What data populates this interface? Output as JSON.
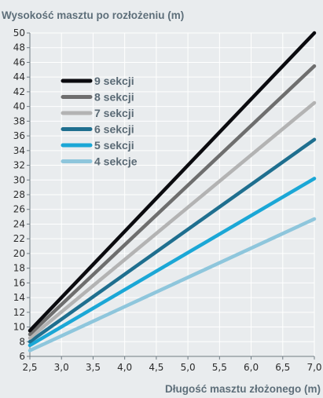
{
  "chart_data": {
    "type": "line",
    "title": "Wysokość masztu po rozłożeniu (m)",
    "xlabel": "Długość masztu złożonego (m)",
    "ylabel": "",
    "xlim": [
      2.5,
      7.0
    ],
    "ylim": [
      6,
      50
    ],
    "x_ticks": [
      "2,5",
      "3,0",
      "3,5",
      "4,0",
      "4,5",
      "5,0",
      "5,5",
      "6,0",
      "6,5",
      "7,0"
    ],
    "y_ticks": [
      "6",
      "8",
      "10",
      "12",
      "14",
      "16",
      "18",
      "20",
      "22",
      "24",
      "26",
      "28",
      "30",
      "32",
      "34",
      "36",
      "38",
      "40",
      "42",
      "44",
      "46",
      "48",
      "50"
    ],
    "grid": true,
    "legend_position": "top-left",
    "series": [
      {
        "name": "9 sekcji",
        "color": "#0b0b0f",
        "x": [
          2.5,
          7.0
        ],
        "y": [
          9.5,
          50.0
        ]
      },
      {
        "name": "8 sekcji",
        "color": "#6e6e6e",
        "x": [
          2.5,
          7.0
        ],
        "y": [
          9.0,
          45.5
        ]
      },
      {
        "name": "7 sekcji",
        "color": "#b3b3b3",
        "x": [
          2.5,
          7.0
        ],
        "y": [
          8.5,
          40.5
        ]
      },
      {
        "name": "6 sekcji",
        "color": "#1f6f8f",
        "x": [
          2.5,
          7.0
        ],
        "y": [
          8.0,
          35.5
        ]
      },
      {
        "name": "5 sekcji",
        "color": "#1ba7d6",
        "x": [
          2.5,
          7.0
        ],
        "y": [
          7.5,
          30.2
        ]
      },
      {
        "name": "4 sekcje",
        "color": "#8ec6dc",
        "x": [
          2.5,
          7.0
        ],
        "y": [
          6.8,
          24.7
        ]
      }
    ]
  }
}
